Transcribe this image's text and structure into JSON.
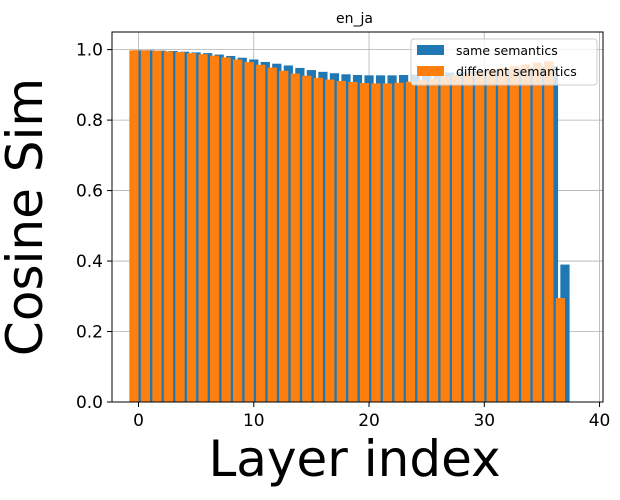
{
  "chart_data": {
    "type": "bar",
    "title": "en_ja",
    "xlabel": "Layer index",
    "ylabel": "Cosine Sim",
    "xlim": [
      -2.3,
      40.3
    ],
    "ylim": [
      0.0,
      1.05
    ],
    "xticks": [
      0,
      10,
      20,
      30,
      40
    ],
    "yticks": [
      0.0,
      0.2,
      0.4,
      0.6,
      0.8,
      1.0
    ],
    "ytick_labels": [
      "0.0",
      "0.2",
      "0.4",
      "0.6",
      "0.8",
      "1.0"
    ],
    "grid": true,
    "legend_position": "top-right",
    "bar_width": 0.8,
    "x": [
      0,
      1,
      2,
      3,
      4,
      5,
      6,
      7,
      8,
      9,
      10,
      11,
      12,
      13,
      14,
      15,
      16,
      17,
      18,
      19,
      20,
      21,
      22,
      23,
      24,
      25,
      26,
      27,
      28,
      29,
      30,
      31,
      32,
      33,
      34,
      35,
      36,
      37
    ],
    "series": [
      {
        "name": "same semantics",
        "color": "#1f77b4",
        "offset": 0,
        "values": [
          0.998,
          0.998,
          0.997,
          0.996,
          0.994,
          0.992,
          0.99,
          0.986,
          0.982,
          0.977,
          0.972,
          0.965,
          0.96,
          0.955,
          0.948,
          0.942,
          0.937,
          0.933,
          0.93,
          0.928,
          0.927,
          0.927,
          0.927,
          0.928,
          0.929,
          0.931,
          0.933,
          0.935,
          0.937,
          0.939,
          0.941,
          0.943,
          0.945,
          0.947,
          0.949,
          0.951,
          0.953,
          0.39
        ]
      },
      {
        "name": "different semantics",
        "color": "#ff7f0e",
        "offset": -0.4,
        "values": [
          0.998,
          0.998,
          0.997,
          0.995,
          0.993,
          0.99,
          0.987,
          0.983,
          0.978,
          0.972,
          0.965,
          0.957,
          0.949,
          0.94,
          0.932,
          0.926,
          0.92,
          0.915,
          0.911,
          0.908,
          0.905,
          0.904,
          0.904,
          0.906,
          0.909,
          0.913,
          0.918,
          0.923,
          0.928,
          0.933,
          0.938,
          0.943,
          0.948,
          0.953,
          0.958,
          0.963,
          0.967,
          0.295
        ]
      }
    ]
  }
}
